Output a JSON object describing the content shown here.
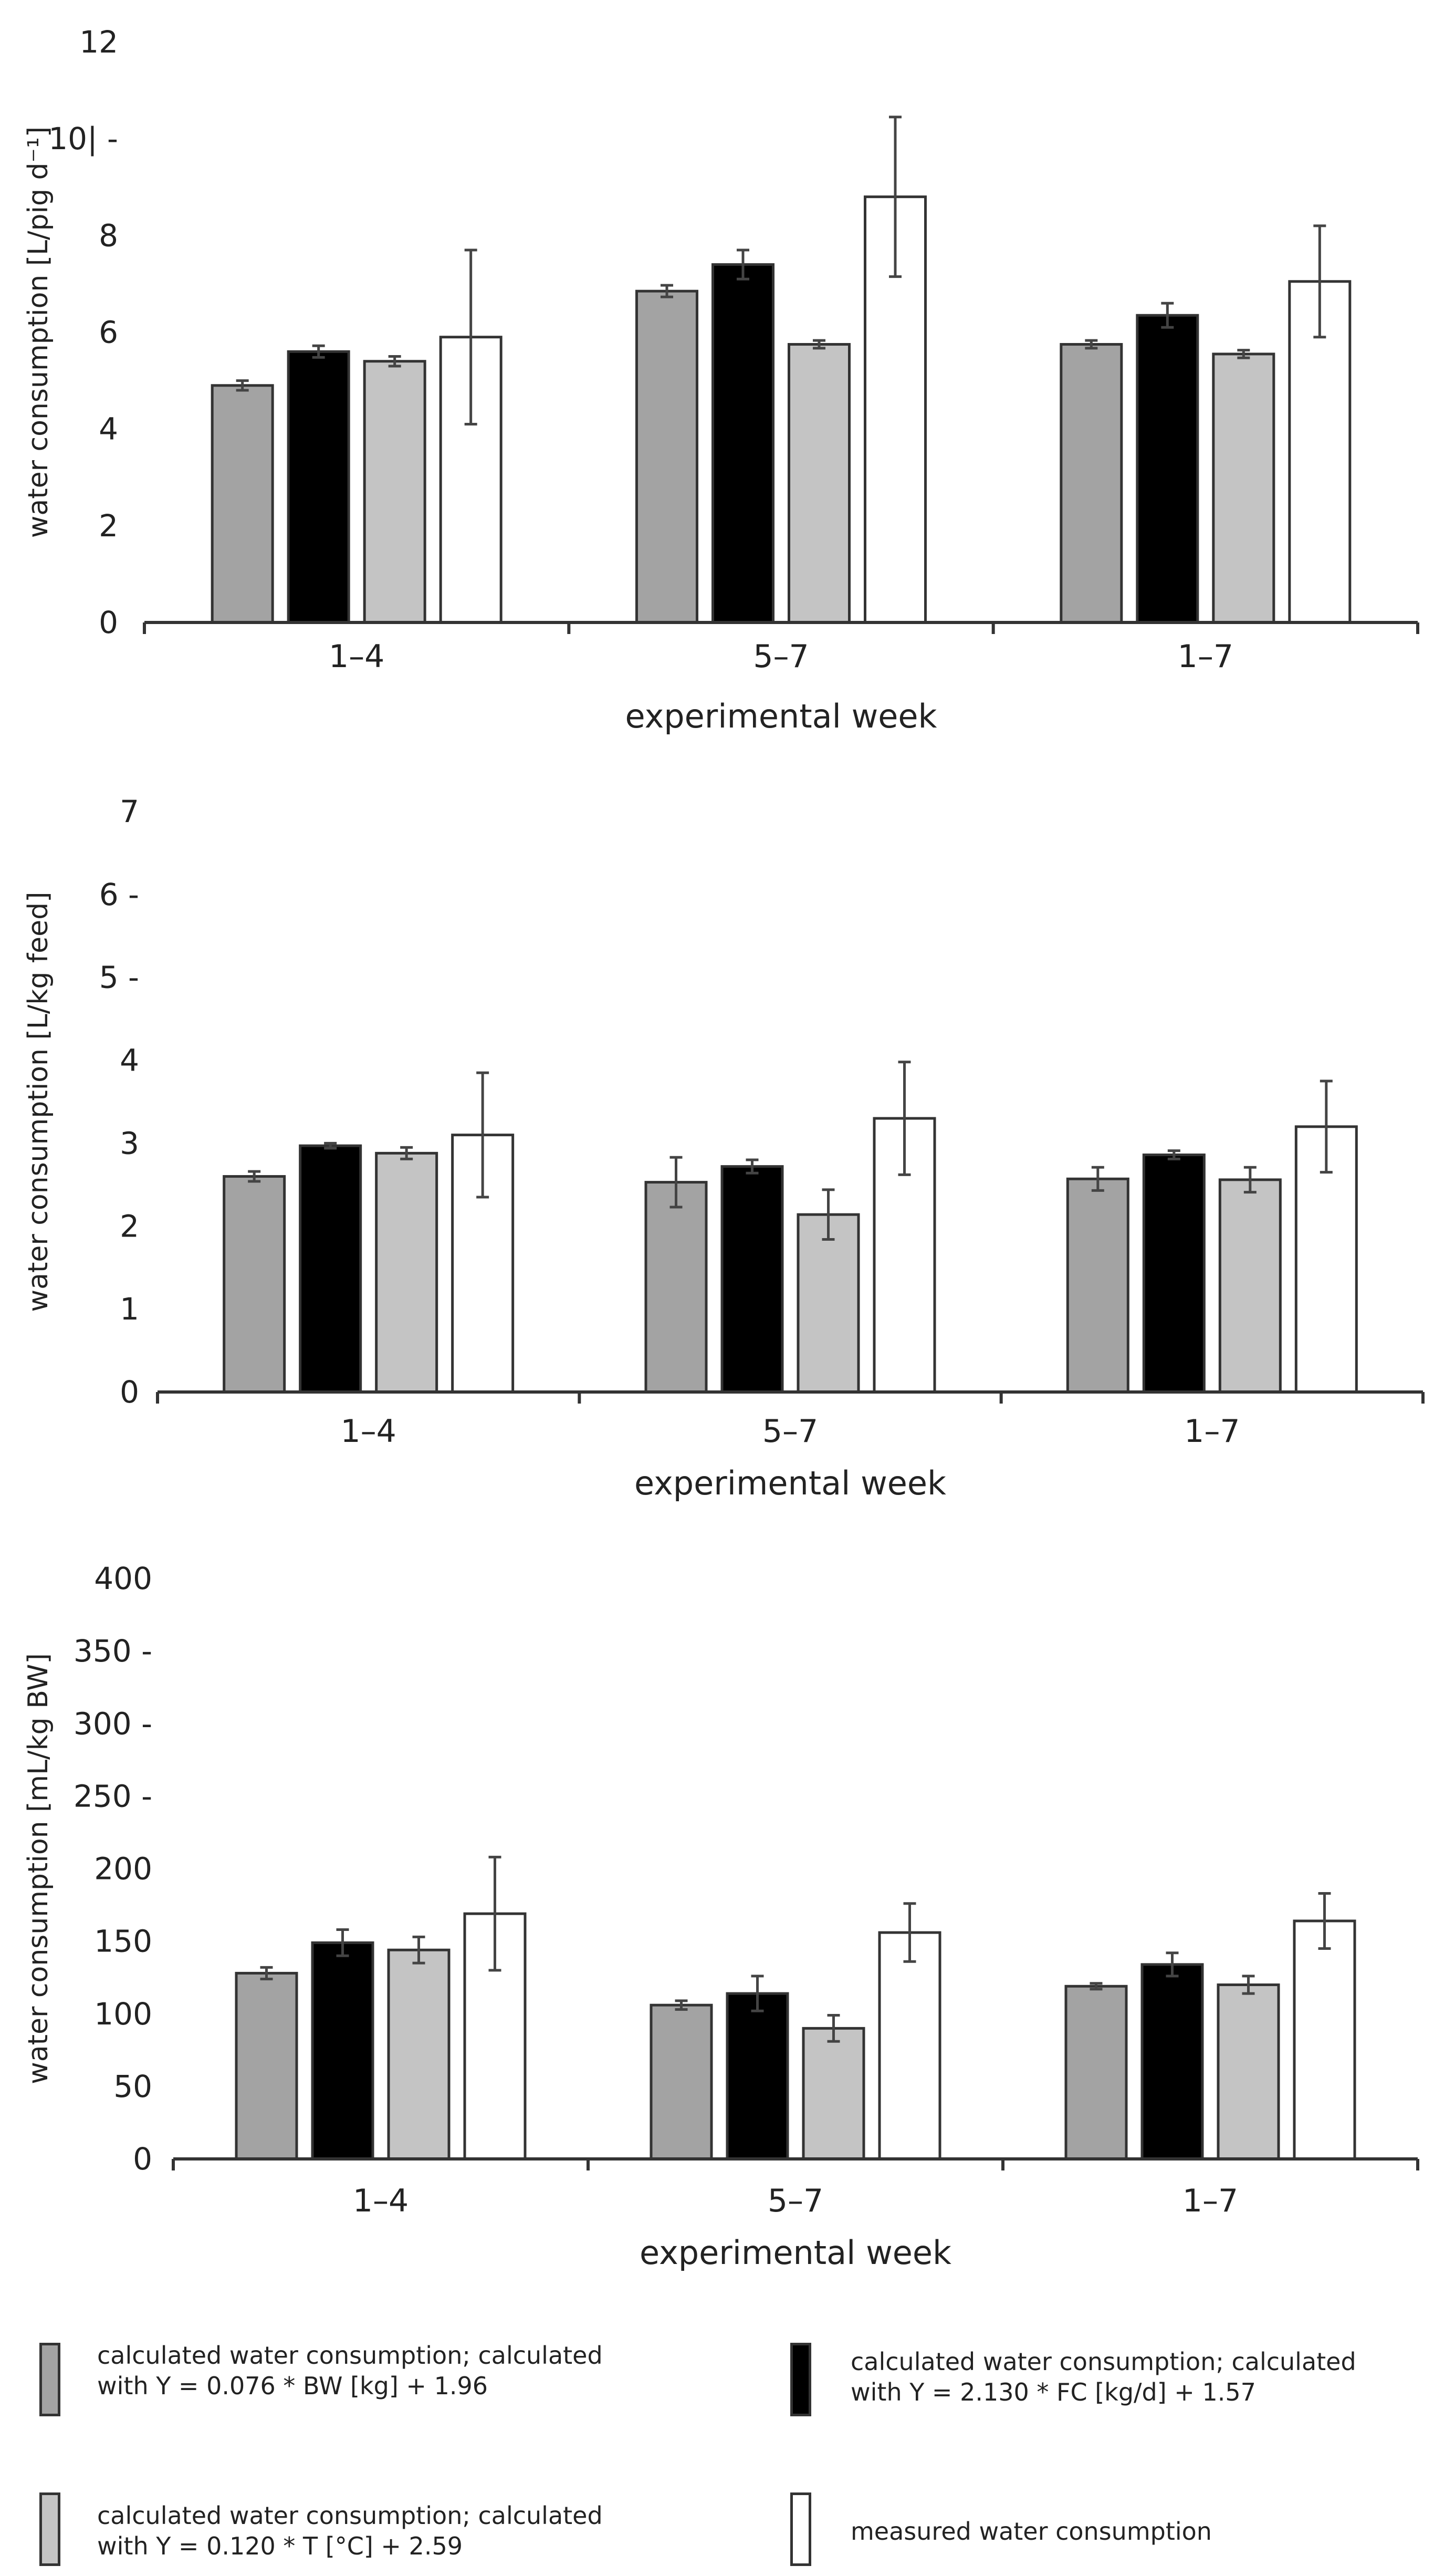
{
  "colors": {
    "bw": "#a3a3a3",
    "fc": "#000000",
    "temp": "#c4c4c4",
    "measured": "#ffffff",
    "edge": "#333333",
    "axis": "#333333",
    "text": "#222222"
  },
  "chart_data": [
    {
      "type": "bar",
      "categories": [
        "1–4",
        "5–7",
        "1–7"
      ],
      "xlabel": "experimental week",
      "ylabel": "water consumption [L/pig d⁻¹]",
      "ylim": [
        0,
        12
      ],
      "yticks": [
        {
          "value": 0,
          "label": "0"
        },
        {
          "value": 2,
          "label": "2"
        },
        {
          "value": 4,
          "label": "4"
        },
        {
          "value": 6,
          "label": "6"
        },
        {
          "value": 8,
          "label": "8"
        },
        {
          "value": 10,
          "label": "10| -"
        },
        {
          "value": 12,
          "label": "12"
        }
      ],
      "series": [
        {
          "name": "bw",
          "values": [
            4.9,
            6.85,
            5.75
          ],
          "errors": [
            0.1,
            0.12,
            0.08
          ]
        },
        {
          "name": "fc",
          "values": [
            5.6,
            7.4,
            6.35
          ],
          "errors": [
            0.12,
            0.3,
            0.25
          ]
        },
        {
          "name": "temp",
          "values": [
            5.4,
            5.75,
            5.55
          ],
          "errors": [
            0.1,
            0.08,
            0.08
          ]
        },
        {
          "name": "measured",
          "values": [
            5.9,
            8.8,
            7.05
          ],
          "errors": [
            1.8,
            1.65,
            1.15
          ]
        }
      ]
    },
    {
      "type": "bar",
      "categories": [
        "1–4",
        "5–7",
        "1–7"
      ],
      "xlabel": "experimental week",
      "ylabel": "water consumption [L/kg feed]",
      "ylim": [
        0,
        7
      ],
      "yticks": [
        {
          "value": 0,
          "label": "0"
        },
        {
          "value": 1,
          "label": "1"
        },
        {
          "value": 2,
          "label": "2"
        },
        {
          "value": 3,
          "label": "3"
        },
        {
          "value": 4,
          "label": "4"
        },
        {
          "value": 5,
          "label": "5 -"
        },
        {
          "value": 6,
          "label": "6 -"
        },
        {
          "value": 7,
          "label": "7"
        }
      ],
      "series": [
        {
          "name": "bw",
          "values": [
            2.6,
            2.53,
            2.57
          ],
          "errors": [
            0.06,
            0.3,
            0.14
          ]
        },
        {
          "name": "fc",
          "values": [
            2.97,
            2.72,
            2.86
          ],
          "errors": [
            0.03,
            0.08,
            0.05
          ]
        },
        {
          "name": "temp",
          "values": [
            2.88,
            2.14,
            2.56
          ],
          "errors": [
            0.07,
            0.3,
            0.15
          ]
        },
        {
          "name": "measured",
          "values": [
            3.1,
            3.3,
            3.2
          ],
          "errors": [
            0.75,
            0.68,
            0.55
          ]
        }
      ]
    },
    {
      "type": "bar",
      "categories": [
        "1–4",
        "5–7",
        "1–7"
      ],
      "xlabel": "experimental week",
      "ylabel": "water consumption [mL/kg BW]",
      "ylim": [
        0,
        400
      ],
      "yticks": [
        {
          "value": 0,
          "label": "0"
        },
        {
          "value": 50,
          "label": "50"
        },
        {
          "value": 100,
          "label": "100"
        },
        {
          "value": 150,
          "label": "150"
        },
        {
          "value": 200,
          "label": "200"
        },
        {
          "value": 250,
          "label": "250 -"
        },
        {
          "value": 300,
          "label": "300 -"
        },
        {
          "value": 350,
          "label": "350 -"
        },
        {
          "value": 400,
          "label": "400"
        }
      ],
      "series": [
        {
          "name": "bw",
          "values": [
            128,
            106,
            119
          ],
          "errors": [
            4,
            3,
            2
          ]
        },
        {
          "name": "fc",
          "values": [
            149,
            114,
            134
          ],
          "errors": [
            9,
            12,
            8
          ]
        },
        {
          "name": "temp",
          "values": [
            144,
            90,
            120
          ],
          "errors": [
            9,
            9,
            6
          ]
        },
        {
          "name": "measured",
          "values": [
            169,
            156,
            164
          ],
          "errors": [
            39,
            20,
            19
          ]
        }
      ]
    }
  ],
  "legend": {
    "bw": "calculated water consumption; calculated\nwith Y = 0.076 * BW [kg] + 1.96",
    "fc": "calculated water consumption; calculated\nwith Y = 2.130 * FC [kg/d] + 1.57",
    "temp": "calculated water consumption; calculated\nwith Y = 0.120 * T [°C] + 2.59",
    "measured": "measured water consumption"
  }
}
